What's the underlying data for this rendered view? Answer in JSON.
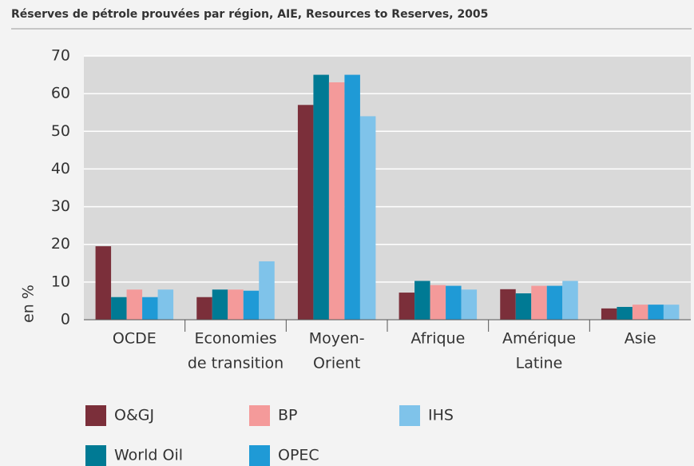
{
  "chart_data": {
    "type": "bar",
    "title": "Réserves de pétrole prouvées par région, AIE, Resources to Reserves, 2005",
    "y_label": "en %",
    "categories": [
      [
        "OCDE"
      ],
      [
        "Economies",
        "de transition"
      ],
      [
        "Moyen-",
        "Orient"
      ],
      [
        "Afrique"
      ],
      [
        "Amérique",
        "Latine"
      ],
      [
        "Asie"
      ]
    ],
    "series": [
      {
        "name": "O&GJ",
        "color": "#7b2f3a",
        "values": [
          19.5,
          6,
          57,
          7.2,
          8.1,
          3
        ]
      },
      {
        "name": "World Oil",
        "color": "#007a94",
        "values": [
          6,
          8,
          65,
          10.3,
          7,
          3.4
        ]
      },
      {
        "name": "BP",
        "color": "#f49a9a",
        "values": [
          8,
          8,
          63,
          9.2,
          9,
          4
        ]
      },
      {
        "name": "OPEC",
        "color": "#1f9ad6",
        "values": [
          6,
          7.7,
          65,
          9,
          9,
          4
        ]
      },
      {
        "name": "IHS",
        "color": "#7fc3ea",
        "values": [
          8,
          15.5,
          54,
          8,
          10.3,
          4
        ]
      }
    ],
    "ylim": [
      0,
      70
    ],
    "yticks": [
      0,
      10,
      20,
      30,
      40,
      50,
      60,
      70
    ],
    "grid": true
  }
}
